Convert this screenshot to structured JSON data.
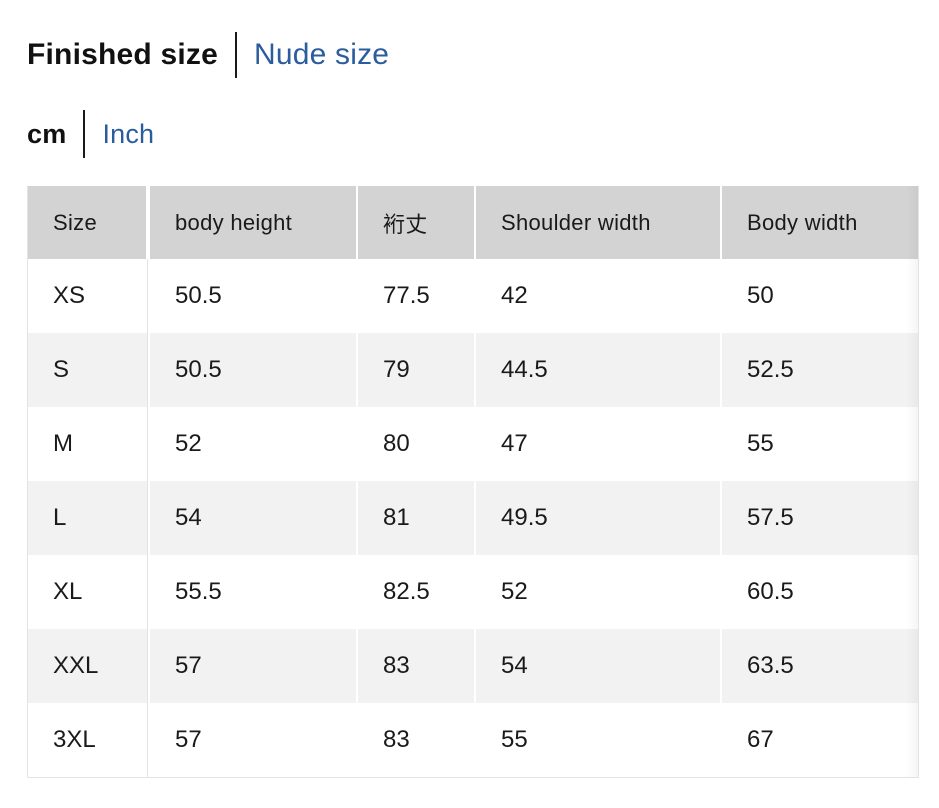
{
  "colors": {
    "link_blue": "#2b5c9e",
    "header_bg": "#d3d3d3",
    "row_alt_bg": "#f2f2f2",
    "border": "#e3e3e3",
    "text": "#1a1a1a"
  },
  "toggles": {
    "size_type": {
      "active": "Finished size",
      "inactive": "Nude size"
    },
    "unit": {
      "active": "cm",
      "inactive": "Inch"
    }
  },
  "table": {
    "columns": [
      "Size",
      "body height",
      "裄丈",
      "Shoulder width",
      "Body width"
    ],
    "rows": [
      {
        "cells": [
          "XS",
          "50.5",
          "77.5",
          "42",
          "50"
        ]
      },
      {
        "cells": [
          "S",
          "50.5",
          "79",
          "44.5",
          "52.5"
        ]
      },
      {
        "cells": [
          "M",
          "52",
          "80",
          "47",
          "55"
        ]
      },
      {
        "cells": [
          "L",
          "54",
          "81",
          "49.5",
          "57.5"
        ]
      },
      {
        "cells": [
          "XL",
          "55.5",
          "82.5",
          "52",
          "60.5"
        ]
      },
      {
        "cells": [
          "XXL",
          "57",
          "83",
          "54",
          "63.5"
        ]
      },
      {
        "cells": [
          "3XL",
          "57",
          "83",
          "55",
          "67"
        ]
      }
    ]
  }
}
